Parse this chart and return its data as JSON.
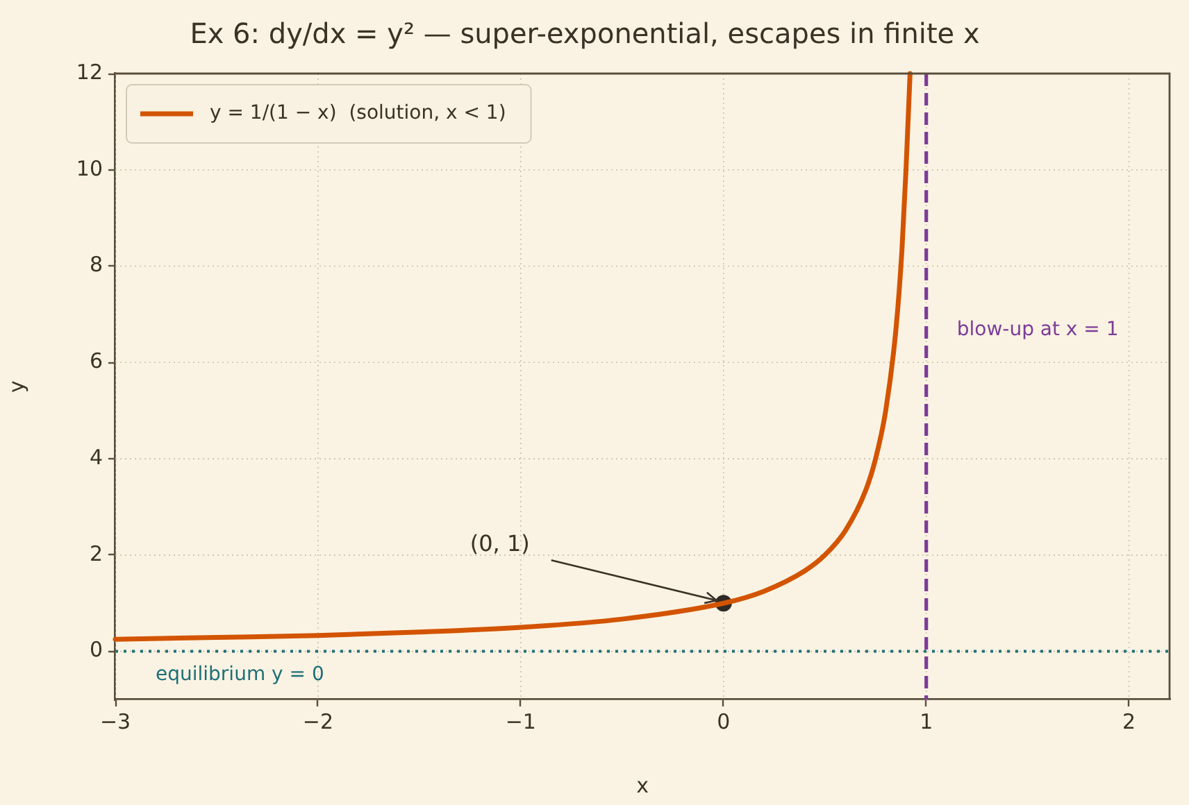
{
  "chart_data": {
    "type": "line",
    "title": "Ex 6: dy/dx = y² — super-exponential, escapes in finite x",
    "xlabel": "x",
    "ylabel": "y",
    "series": [
      {
        "name": "y = 1/(1 − x)  (solution, x < 1)",
        "color": "#d35400",
        "x": [
          -3,
          -2.5,
          -2,
          -1.5,
          -1,
          -0.5,
          0,
          0.2,
          0.4,
          0.5,
          0.6,
          0.7,
          0.75,
          0.8,
          0.85,
          0.88,
          0.9,
          0.92
        ],
        "values": [
          0.25,
          0.29,
          0.33,
          0.4,
          0.5,
          0.67,
          1,
          1.25,
          1.67,
          2,
          2.5,
          3.33,
          4,
          5,
          6.67,
          8.33,
          10,
          12
        ]
      },
      {
        "type": "scatter",
        "color": "#2e2a25",
        "marker": "circle",
        "x": [
          0
        ],
        "values": [
          1
        ]
      }
    ],
    "xlim": [
      -3,
      2.2
    ],
    "ylim": [
      -1,
      12
    ],
    "xticks": [
      -3,
      -2,
      -1,
      0,
      1,
      2
    ],
    "yticks": [
      0,
      2,
      4,
      6,
      8,
      10,
      12
    ],
    "grid": true,
    "legend": "top left",
    "line_style": "solid",
    "ref_lines": [
      {
        "axis": "x",
        "value": 1,
        "label": "blow-up at x = 1",
        "color": "#7d3c98",
        "line_style": "dashed"
      },
      {
        "axis": "y",
        "value": 0,
        "label": "equilibrium y = 0",
        "color": "#1f6f78",
        "line_style": "dotted"
      }
    ],
    "annotations": [
      {
        "text": "(0, 1)",
        "x": 0,
        "y": 1
      }
    ]
  }
}
